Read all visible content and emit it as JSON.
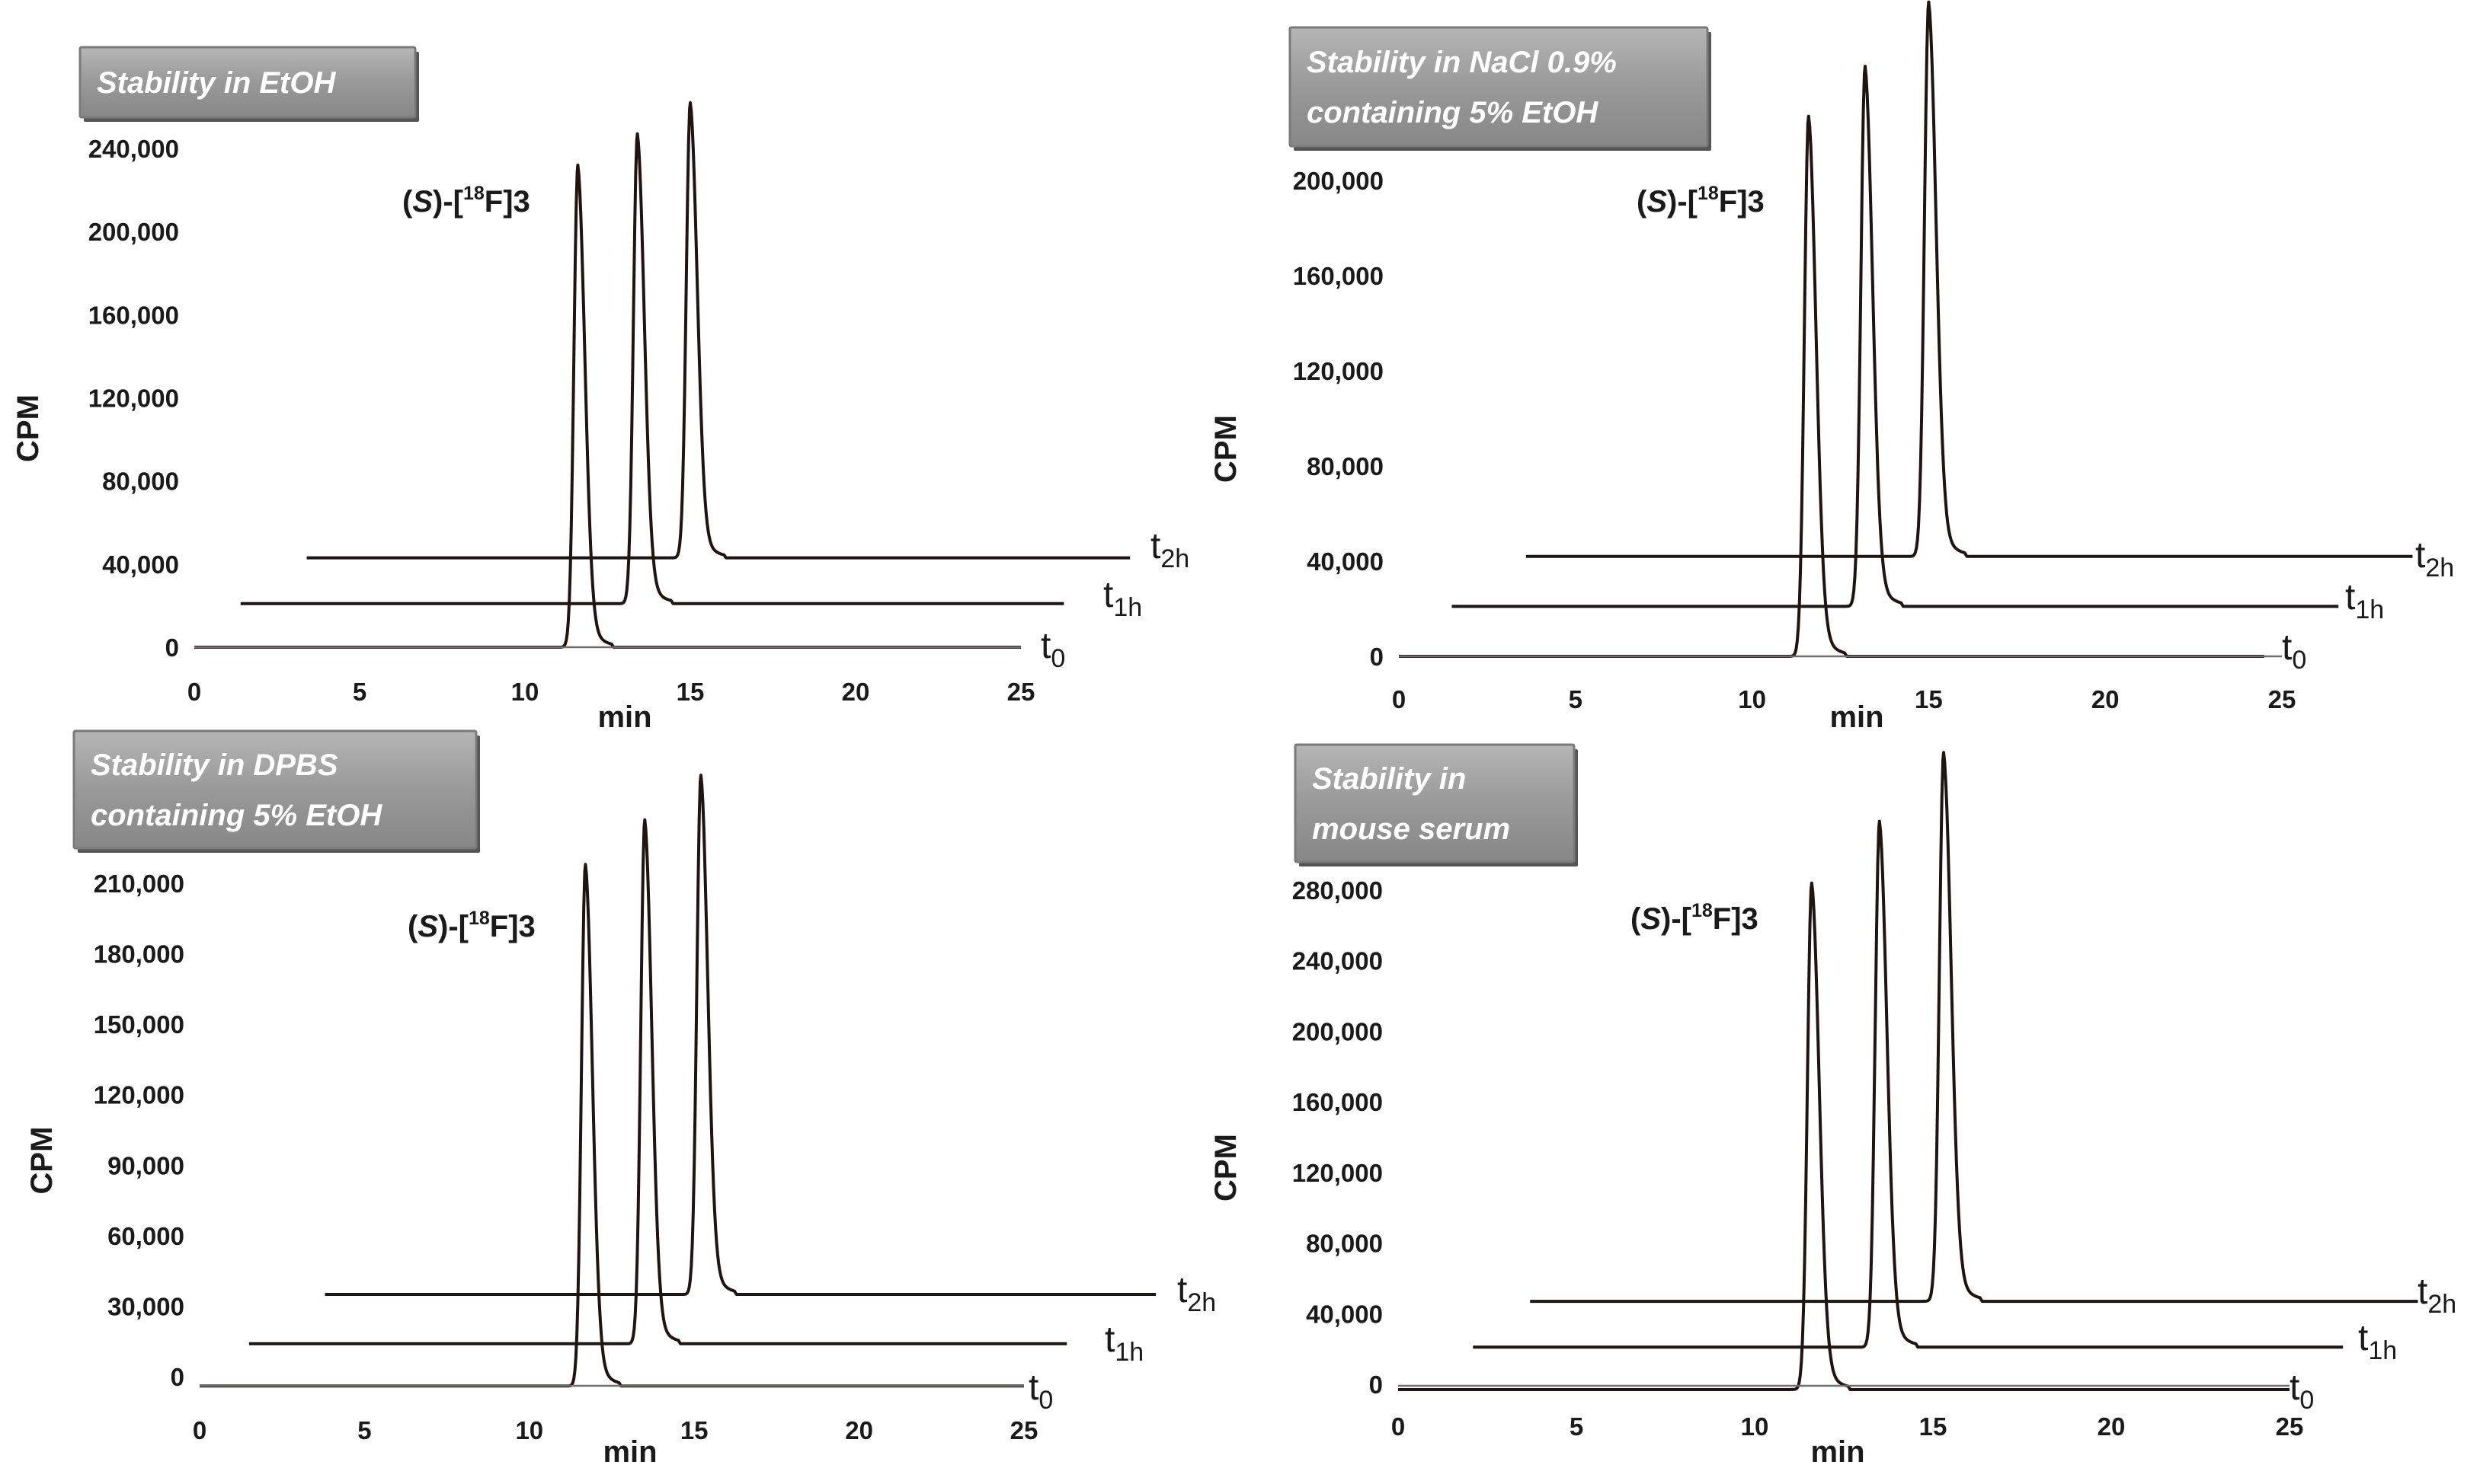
{
  "chart_data": [
    {
      "type": "line",
      "title": "Stability in EtOH",
      "title_lines": [
        "Stability in EtOH"
      ],
      "xlabel": "min",
      "ylabel": "CPM",
      "xlim": [
        0,
        25
      ],
      "x_ticks": [
        0,
        5,
        10,
        15,
        20,
        25
      ],
      "y_ticks": [
        0,
        40000,
        80000,
        120000,
        160000,
        200000,
        240000
      ],
      "y_tick_labels": [
        "0",
        "40,000",
        "80,000",
        "120,000",
        "160,000",
        "200,000",
        "240,000"
      ],
      "compound_label": {
        "prefix": "(",
        "italic": "S",
        "mid": ")-[",
        "sup": "18",
        "suffix": "F]3"
      },
      "series": [
        {
          "name": "t0",
          "label_main": "t",
          "label_sub": "0",
          "x_start": 0,
          "x_end": 25,
          "baseline": 0,
          "peak_x": 11.6,
          "peak_y": 232000
        },
        {
          "name": "t1h",
          "label_main": "t",
          "label_sub": "1h",
          "x_start": 1.4,
          "x_end": 26.3,
          "baseline": 21000,
          "peak_x": 13.4,
          "peak_y": 247000
        },
        {
          "name": "t2h",
          "label_main": "t",
          "label_sub": "2h",
          "x_start": 3.4,
          "x_end": 28.3,
          "baseline": 43000,
          "peak_x": 15.0,
          "peak_y": 262000
        }
      ]
    },
    {
      "type": "line",
      "title": "Stability in NaCl 0.9% containing 5% EtOH",
      "title_lines": [
        "Stability in NaCl 0.9%",
        "containing 5% EtOH"
      ],
      "xlabel": "min",
      "ylabel": "CPM",
      "xlim": [
        0,
        25
      ],
      "x_ticks": [
        0,
        5,
        10,
        15,
        20,
        25
      ],
      "y_ticks": [
        0,
        40000,
        80000,
        120000,
        160000,
        200000
      ],
      "y_tick_labels": [
        "0",
        "40,000",
        "80,000",
        "120,000",
        "160,000",
        "200,000"
      ],
      "compound_label": {
        "prefix": "(",
        "italic": "S",
        "mid": ")-[",
        "sup": "18",
        "suffix": "F]3"
      },
      "series": [
        {
          "name": "t0",
          "label_main": "t",
          "label_sub": "0",
          "x_start": 0,
          "x_end": 24.5,
          "baseline": 0,
          "peak_x": 11.6,
          "peak_y": 227000
        },
        {
          "name": "t1h",
          "label_main": "t",
          "label_sub": "1h",
          "x_start": 1.5,
          "x_end": 26.6,
          "baseline": 21000,
          "peak_x": 13.2,
          "peak_y": 248000
        },
        {
          "name": "t2h",
          "label_main": "t",
          "label_sub": "2h",
          "x_start": 3.6,
          "x_end": 28.7,
          "baseline": 42000,
          "peak_x": 15.0,
          "peak_y": 275000
        }
      ]
    },
    {
      "type": "line",
      "title": "Stability in DPBS containing 5% EtOH",
      "title_lines": [
        "Stability in DPBS",
        "containing 5% EtOH"
      ],
      "xlabel": "min",
      "ylabel": "CPM",
      "xlim": [
        0,
        25
      ],
      "x_ticks": [
        0,
        5,
        10,
        15,
        20,
        25
      ],
      "y_ticks": [
        0,
        30000,
        60000,
        90000,
        120000,
        150000,
        180000,
        210000
      ],
      "y_tick_labels": [
        "0",
        "30,000",
        "60,000",
        "90,000",
        "120,000",
        "150,000",
        "180,000",
        "210,000"
      ],
      "compound_label": {
        "prefix": "(",
        "italic": "S",
        "mid": ")-[",
        "sup": "18",
        "suffix": "F]3"
      },
      "series": [
        {
          "name": "t0",
          "label_main": "t",
          "label_sub": "0",
          "x_start": 0,
          "x_end": 25,
          "baseline": -4000,
          "peak_x": 11.7,
          "peak_y": 218000
        },
        {
          "name": "t1h",
          "label_main": "t",
          "label_sub": "1h",
          "x_start": 1.5,
          "x_end": 26.3,
          "baseline": 14000,
          "peak_x": 13.5,
          "peak_y": 237000
        },
        {
          "name": "t2h",
          "label_main": "t",
          "label_sub": "2h",
          "x_start": 3.8,
          "x_end": 29.0,
          "baseline": 35000,
          "peak_x": 15.2,
          "peak_y": 256000
        }
      ]
    },
    {
      "type": "line",
      "title": "Stability in mouse serum",
      "title_lines": [
        "Stability in",
        "mouse serum"
      ],
      "xlabel": "min",
      "ylabel": "CPM",
      "xlim": [
        0,
        25
      ],
      "x_ticks": [
        0,
        5,
        10,
        15,
        20,
        25
      ],
      "y_ticks": [
        0,
        40000,
        80000,
        120000,
        160000,
        200000,
        240000,
        280000
      ],
      "y_tick_labels": [
        "0",
        "40,000",
        "80,000",
        "120,000",
        "160,000",
        "200,000",
        "240,000",
        "280,000"
      ],
      "compound_label": {
        "prefix": "(",
        "italic": "S",
        "mid": ")-[",
        "sup": "18",
        "suffix": "F]3"
      },
      "series": [
        {
          "name": "t0",
          "label_main": "t",
          "label_sub": "0",
          "x_start": 0,
          "x_end": 25,
          "baseline": -3000,
          "peak_x": 11.6,
          "peak_y": 284000
        },
        {
          "name": "t1h",
          "label_main": "t",
          "label_sub": "1h",
          "x_start": 2.1,
          "x_end": 26.5,
          "baseline": 21000,
          "peak_x": 13.5,
          "peak_y": 319000
        },
        {
          "name": "t2h",
          "label_main": "t",
          "label_sub": "2h",
          "x_start": 3.7,
          "x_end": 28.6,
          "baseline": 47000,
          "peak_x": 15.3,
          "peak_y": 358000
        }
      ]
    }
  ]
}
